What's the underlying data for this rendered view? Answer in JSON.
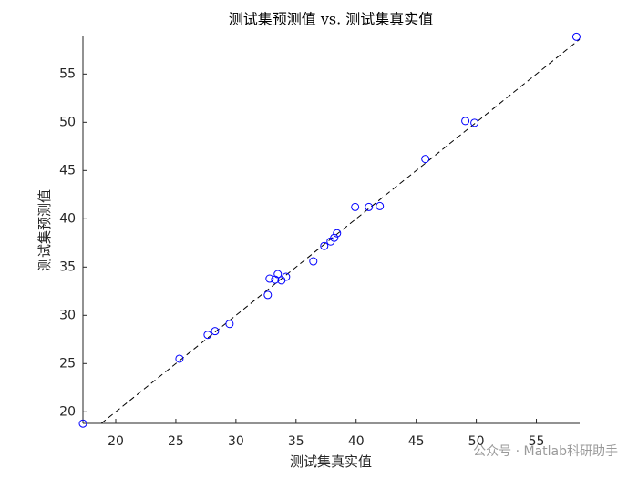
{
  "chart_data": {
    "type": "scatter",
    "title": "测试集预测值 vs. 测试集真实值",
    "xlabel": "测试集真实值",
    "ylabel": "测试集预测值",
    "watermark": "公众号 · Matlab科研助手",
    "color": "#0000ff",
    "x": [
      17.27,
      25.3,
      27.65,
      28.26,
      29.47,
      32.65,
      32.8,
      33.26,
      33.48,
      33.79,
      34.17,
      36.44,
      37.35,
      37.88,
      38.18,
      38.41,
      39.92,
      41.06,
      41.97,
      45.76,
      49.09,
      49.85,
      58.33
    ],
    "y": [
      18.78,
      25.5,
      27.98,
      28.36,
      29.11,
      32.11,
      33.8,
      33.7,
      34.27,
      33.62,
      33.99,
      35.59,
      37.18,
      37.65,
      38.03,
      38.5,
      41.22,
      41.22,
      41.31,
      46.2,
      50.14,
      49.95,
      58.87
    ],
    "xlim": [
      17.27,
      58.6
    ],
    "ylim": [
      18.8,
      58.9
    ],
    "xticks": [
      20,
      25,
      30,
      35,
      40,
      45,
      50,
      55
    ],
    "yticks": [
      20,
      25,
      30,
      35,
      40,
      45,
      50,
      55
    ]
  }
}
